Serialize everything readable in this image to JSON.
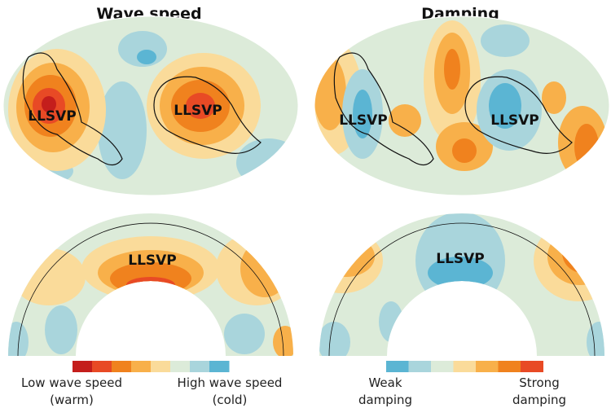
{
  "panels": {
    "wave_speed": {
      "title": "Wave speed",
      "map_label": [
        "LLSVP",
        "LLSVP"
      ],
      "section_label": "LLSVP"
    },
    "damping": {
      "title": "Damping",
      "map_label": [
        "LLSVP",
        "LLSVP"
      ],
      "section_label": "LLSVP"
    }
  },
  "legends": {
    "wave_speed": {
      "colors": [
        "#c41e1c",
        "#e84a25",
        "#f0821e",
        "#f8b04a",
        "#fadb9a",
        "#dcebd9",
        "#a9d5dc",
        "#5bb5d3"
      ],
      "low_label": [
        "Low wave speed",
        "(warm)"
      ],
      "high_label": [
        "High wave speed",
        "(cold)"
      ]
    },
    "damping": {
      "colors": [
        "#5bb5d3",
        "#a9d5dc",
        "#dcebd9",
        "#fadb9a",
        "#f8b04a",
        "#f0821e",
        "#e84a25"
      ],
      "low_label": [
        "Weak",
        "damping"
      ],
      "high_label": [
        "Strong",
        "damping"
      ]
    }
  }
}
